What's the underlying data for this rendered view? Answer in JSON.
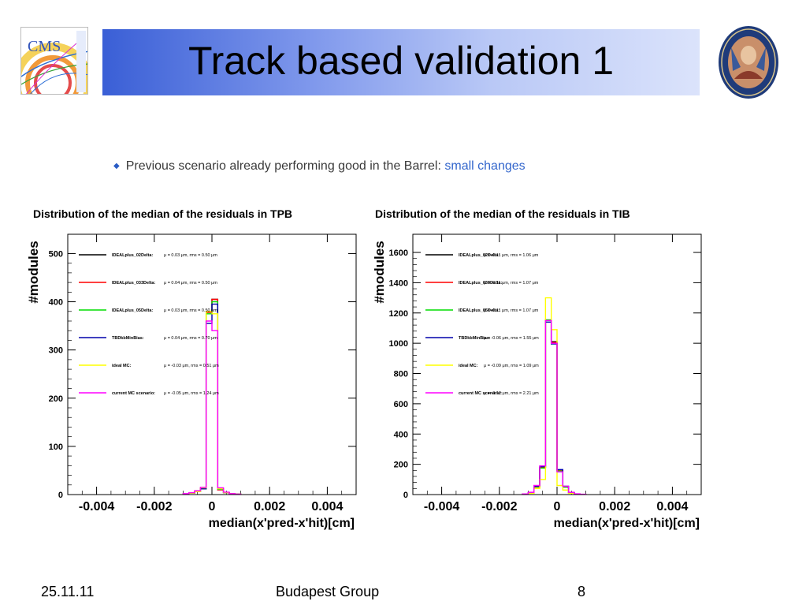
{
  "slide": {
    "title": "Track based validation 1",
    "bullet": {
      "text": "Previous scenario already performing good in the Barrel: ",
      "highlight": "small changes"
    },
    "footer": {
      "date": "25.11.11",
      "group": "Budapest Group",
      "page": "8"
    },
    "logo_left_text": "CMS"
  },
  "colors": {
    "accent": "#3366cc"
  },
  "chart_data": [
    {
      "type": "histogram",
      "title": "Distribution of the median of the residuals in TPB",
      "ylabel": "#modules",
      "xlabel": "median(x'pred-x'hit)[cm]",
      "xlim": [
        -0.005,
        0.005
      ],
      "ylim": [
        0,
        540
      ],
      "yticks": [
        0,
        100,
        200,
        300,
        400,
        500
      ],
      "xticks": [
        -0.004,
        -0.002,
        0,
        0.002,
        0.004
      ],
      "xtick_labels": [
        "-0.004",
        "-0.002",
        "0",
        "0.002",
        "0.004"
      ],
      "ytick_labels": [
        "0",
        "100",
        "200",
        "300",
        "400",
        "500"
      ],
      "bin_edges": [
        -0.001,
        -0.0008,
        -0.0006,
        -0.0004,
        -0.0002,
        0,
        0.0002,
        0.0004,
        0.0006,
        0.0008,
        0.001
      ],
      "series": [
        {
          "name": "IDEALplus_02Delta:",
          "stat": "μ = 0.03  μm, rms = 0.50  μm",
          "color": "#000000",
          "values": [
            1,
            3,
            6,
            12,
            380,
            405,
            10,
            4,
            2,
            1
          ]
        },
        {
          "name": "IDEALplus_033Delta:",
          "stat": "μ = 0.04  μm, rms = 0.50  μm",
          "color": "#ff0000",
          "values": [
            1,
            3,
            6,
            12,
            378,
            405,
            10,
            4,
            2,
            1
          ]
        },
        {
          "name": "IDEALplus_05Delta:",
          "stat": "μ = 0.03  μm, rms = 0.50  μm",
          "color": "#00dd00",
          "values": [
            1,
            3,
            6,
            12,
            375,
            400,
            11,
            4,
            2,
            1
          ]
        },
        {
          "name": "TBDkbMinBias:",
          "stat": "μ = 0.04  μm, rms = 0.70  μm",
          "color": "#0000aa",
          "values": [
            1,
            3,
            6,
            12,
            355,
            395,
            12,
            4,
            2,
            1
          ]
        },
        {
          "name": "ideal MC:",
          "stat": "μ = -0.03  μm, rms = 0.51  μm",
          "color": "#ffff00",
          "values": [
            1,
            3,
            6,
            14,
            380,
            375,
            12,
            4,
            2,
            1
          ]
        },
        {
          "name": "current MC scenario:",
          "stat": "μ = -0.05  μm, rms = 1.24  μm",
          "color": "#ff00ff",
          "values": [
            2,
            4,
            8,
            15,
            360,
            340,
            14,
            5,
            2,
            1
          ]
        }
      ]
    },
    {
      "type": "histogram",
      "title": "Distribution of the median of the residuals in TIB",
      "ylabel": "#modules",
      "xlabel": "median(x'pred-x'hit)[cm]",
      "xlim": [
        -0.005,
        0.005
      ],
      "ylim": [
        0,
        1720
      ],
      "yticks": [
        0,
        200,
        400,
        600,
        800,
        1000,
        1200,
        1400,
        1600
      ],
      "xticks": [
        -0.004,
        -0.002,
        0,
        0.002,
        0.004
      ],
      "xtick_labels": [
        "-0.004",
        "-0.002",
        "0",
        "0.002",
        "0.004"
      ],
      "ytick_labels": [
        "0",
        "200",
        "400",
        "600",
        "800",
        "1000",
        "1200",
        "1400",
        "1600"
      ],
      "bin_edges": [
        -0.0012,
        -0.001,
        -0.0008,
        -0.0006,
        -0.0004,
        -0.0002,
        0,
        0.0002,
        0.0004,
        0.0006,
        0.0008,
        0.001
      ],
      "series": [
        {
          "name": "IDEALplus_02Delta:",
          "stat": "μ = -0.11  μm, rms = 1.06  μm",
          "color": "#000000",
          "values": [
            2,
            10,
            50,
            180,
            1150,
            1010,
            160,
            50,
            10,
            3,
            1
          ]
        },
        {
          "name": "IDEALplus_033Delta:",
          "stat": "μ = -0.11  μm, rms = 1.07  μm",
          "color": "#ff0000",
          "values": [
            2,
            10,
            50,
            180,
            1150,
            1005,
            160,
            50,
            10,
            3,
            1
          ]
        },
        {
          "name": "IDEALplus_05Delta:",
          "stat": "μ = -0.11  μm, rms = 1.07  μm",
          "color": "#00dd00",
          "values": [
            2,
            10,
            52,
            175,
            1155,
            1000,
            155,
            50,
            10,
            3,
            1
          ]
        },
        {
          "name": "TBDkbMinBias:",
          "stat": "μ = -0.06  μm, rms = 1.55  μm",
          "color": "#0000aa",
          "values": [
            3,
            12,
            55,
            185,
            1140,
            995,
            165,
            55,
            12,
            4,
            1
          ]
        },
        {
          "name": "ideal MC:",
          "stat": "μ = -0.09  μm, rms = 1.09  μm",
          "color": "#ffff00",
          "values": [
            2,
            8,
            40,
            100,
            1300,
            1090,
            60,
            30,
            8,
            3,
            1
          ]
        },
        {
          "name": "current MC scenario:",
          "stat": "μ = -0.12  μm, rms = 2.21  μm",
          "color": "#ff00ff",
          "values": [
            4,
            15,
            60,
            190,
            1150,
            1000,
            150,
            55,
            15,
            5,
            2
          ]
        }
      ]
    }
  ]
}
